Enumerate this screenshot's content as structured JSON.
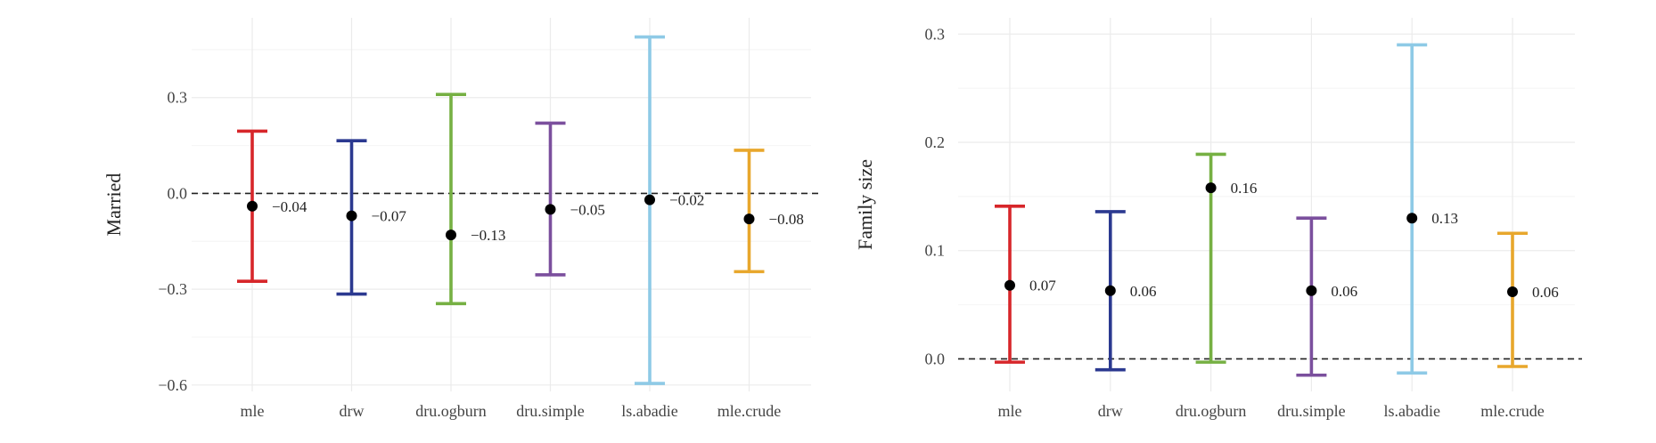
{
  "chart_data": [
    {
      "type": "errorbar",
      "ylabel": "Married",
      "categories": [
        "mle",
        "drw",
        "dru.ogburn",
        "dru.simple",
        "ls.abadie",
        "mle.crude"
      ],
      "estimates": [
        -0.04,
        -0.07,
        -0.13,
        -0.05,
        -0.02,
        -0.08
      ],
      "lower": [
        -0.275,
        -0.315,
        -0.345,
        -0.255,
        -0.595,
        -0.245
      ],
      "upper": [
        0.195,
        0.165,
        0.31,
        0.22,
        0.49,
        0.135
      ],
      "labels": [
        "−0.04",
        "−0.07",
        "−0.13",
        "−0.05",
        "−0.02",
        "−0.08"
      ],
      "colors": [
        "#d7262a",
        "#2b3990",
        "#76b043",
        "#7b4f9d",
        "#8ecae6",
        "#e8a72c"
      ],
      "yticks": [
        -0.6,
        -0.3,
        0.0,
        0.3
      ],
      "ytick_labels": [
        "−0.6",
        "−0.3",
        "0.0",
        "0.3"
      ],
      "ylim": [
        -0.62,
        0.55
      ],
      "reference_line": 0.0,
      "grid": true
    },
    {
      "type": "errorbar",
      "ylabel": "Family size",
      "categories": [
        "mle",
        "drw",
        "dru.ogburn",
        "dru.simple",
        "ls.abadie",
        "mle.crude"
      ],
      "estimates": [
        0.068,
        0.063,
        0.158,
        0.063,
        0.13,
        0.062
      ],
      "lower": [
        -0.003,
        -0.01,
        -0.003,
        -0.015,
        -0.013,
        -0.007
      ],
      "upper": [
        0.141,
        0.136,
        0.189,
        0.13,
        0.29,
        0.116
      ],
      "labels": [
        "0.07",
        "0.06",
        "0.16",
        "0.06",
        "0.13",
        "0.06"
      ],
      "colors": [
        "#d7262a",
        "#2b3990",
        "#76b043",
        "#7b4f9d",
        "#8ecae6",
        "#e8a72c"
      ],
      "yticks": [
        0.0,
        0.1,
        0.2,
        0.3
      ],
      "ytick_labels": [
        "0.0",
        "0.1",
        "0.2",
        "0.3"
      ],
      "ylim": [
        -0.03,
        0.315
      ],
      "reference_line": 0.0,
      "grid": true
    }
  ]
}
